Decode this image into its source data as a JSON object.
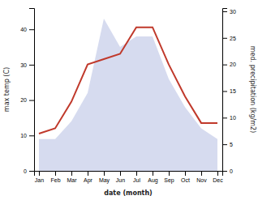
{
  "chart_data": {
    "type": "line",
    "categories": [
      "Jan",
      "Feb",
      "Mar",
      "Apr",
      "May",
      "Jun",
      "Jul",
      "Aug",
      "Sep",
      "Oct",
      "Nov",
      "Dec"
    ],
    "series": [
      {
        "type": "area",
        "color": "#c5cce8",
        "values": [
          9,
          9,
          14,
          22,
          43,
          35,
          38,
          38,
          26,
          18,
          12,
          9
        ]
      },
      {
        "type": "line",
        "color": "#c0392b",
        "axis": "y2",
        "values": [
          7,
          8,
          13,
          20,
          21,
          22,
          27,
          27,
          20,
          14,
          9,
          9
        ]
      }
    ],
    "xlabel": "date (month)",
    "ylabel": "max temp (C)",
    "y2label": "med. precipitation (kg/m2)",
    "ylim": [
      0,
      46
    ],
    "yticks": [
      0,
      10,
      20,
      30,
      40
    ],
    "y2lim": [
      0,
      30.6
    ],
    "y2ticks": [
      0,
      5,
      10,
      15,
      20,
      25,
      30
    ],
    "grid": false
  }
}
